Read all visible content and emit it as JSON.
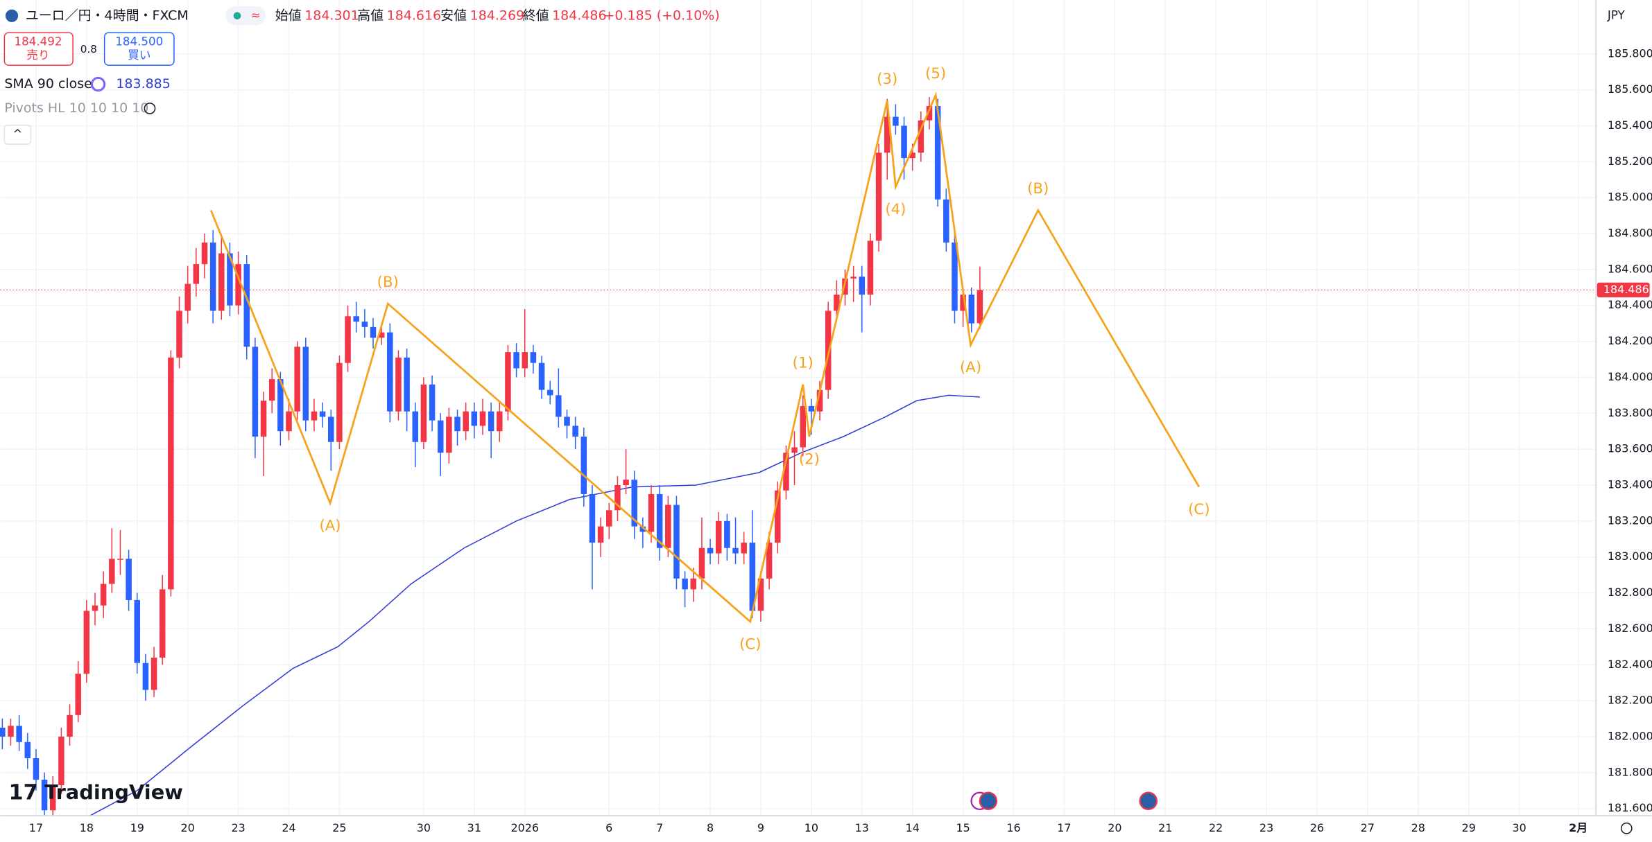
{
  "header": {
    "title": "ユーロ／円・4時間・FXCM",
    "open_label": "始値",
    "high_label": "高値",
    "low_label": "安値",
    "close_label": "終値",
    "change": "+0.185 (+0.10%)",
    "sell_price": "184.492",
    "sell_label": "売り",
    "spread": "0.8",
    "buy_price": "184.500",
    "buy_label": "買い",
    "sma_label": "SMA 90 close",
    "sma_value": "183.885",
    "pivots_label": "Pivots HL 10 10 10 10",
    "logo": "TradingView",
    "currency": "JPY"
  },
  "chart_data": {
    "type": "candlestick",
    "up_color": "#f23645",
    "down_color": "#2962ff",
    "xlim": [
      -0.25,
      189.1
    ],
    "ylim": [
      181.56,
      186.1
    ],
    "grid": true,
    "xticks": [
      {
        "value": 4,
        "label": "17"
      },
      {
        "value": 10,
        "label": "18"
      },
      {
        "value": 16,
        "label": "19"
      },
      {
        "value": 22,
        "label": "20"
      },
      {
        "value": 28,
        "label": "23"
      },
      {
        "value": 34,
        "label": "24"
      },
      {
        "value": 40,
        "label": "25"
      },
      {
        "value": 50,
        "label": "30"
      },
      {
        "value": 56,
        "label": "31"
      },
      {
        "value": 62,
        "label": "2026"
      },
      {
        "value": 72,
        "label": "6"
      },
      {
        "value": 78,
        "label": "7"
      },
      {
        "value": 84,
        "label": "8"
      },
      {
        "value": 90,
        "label": "9"
      },
      {
        "value": 96,
        "label": "10"
      },
      {
        "value": 102,
        "label": "13"
      },
      {
        "value": 108,
        "label": "14"
      },
      {
        "value": 114,
        "label": "15"
      },
      {
        "value": 120,
        "label": "16"
      },
      {
        "value": 126,
        "label": "17"
      },
      {
        "value": 132,
        "label": "20"
      },
      {
        "value": 138,
        "label": "21"
      },
      {
        "value": 144,
        "label": "22"
      },
      {
        "value": 150,
        "label": "23"
      },
      {
        "value": 156,
        "label": "26"
      },
      {
        "value": 162,
        "label": "27"
      },
      {
        "value": 168,
        "label": "28"
      },
      {
        "value": 174,
        "label": "29"
      },
      {
        "value": 180,
        "label": "30"
      },
      {
        "value": 187,
        "label": "2月"
      }
    ],
    "yticks": [
      {
        "value": 181.6,
        "label": "181.600"
      },
      {
        "value": 181.8,
        "label": "181.800"
      },
      {
        "value": 182,
        "label": "182.000"
      },
      {
        "value": 182.2,
        "label": "182.200"
      },
      {
        "value": 182.4,
        "label": "182.400"
      },
      {
        "value": 182.6,
        "label": "182.600"
      },
      {
        "value": 182.8,
        "label": "182.800"
      },
      {
        "value": 183,
        "label": "183.000"
      },
      {
        "value": 183.2,
        "label": "183.200"
      },
      {
        "value": 183.4,
        "label": "183.400"
      },
      {
        "value": 183.6,
        "label": "183.600"
      },
      {
        "value": 183.8,
        "label": "183.800"
      },
      {
        "value": 184,
        "label": "184.000"
      },
      {
        "value": 184.2,
        "label": "184.200"
      },
      {
        "value": 184.4,
        "label": "184.400"
      },
      {
        "value": 184.6,
        "label": "184.600"
      },
      {
        "value": 184.8,
        "label": "184.800"
      },
      {
        "value": 185,
        "label": "185.000"
      },
      {
        "value": 185.2,
        "label": "185.200"
      },
      {
        "value": 185.4,
        "label": "185.400"
      },
      {
        "value": 185.6,
        "label": "185.600"
      },
      {
        "value": 185.8,
        "label": "185.800"
      }
    ],
    "ohlc": [
      [
        182.05,
        182.1,
        181.93,
        182
      ],
      [
        182,
        182.1,
        181.95,
        182.06
      ],
      [
        182.06,
        182.12,
        181.92,
        181.97
      ],
      [
        181.97,
        182.02,
        181.82,
        181.88
      ],
      [
        181.88,
        181.93,
        181.7,
        181.76
      ],
      [
        181.76,
        181.8,
        181.55,
        181.59
      ],
      [
        181.59,
        181.78,
        181.55,
        181.73
      ],
      [
        181.73,
        182.05,
        181.68,
        182
      ],
      [
        182,
        182.18,
        181.95,
        182.12
      ],
      [
        182.12,
        182.42,
        182.08,
        182.35
      ],
      [
        182.35,
        182.76,
        182.3,
        182.7
      ],
      [
        182.7,
        182.8,
        182.62,
        182.73
      ],
      [
        182.73,
        182.92,
        182.66,
        182.85
      ],
      [
        182.85,
        183.16,
        182.8,
        182.99
      ],
      [
        182.99,
        183.15,
        182.9,
        182.99
      ],
      [
        182.99,
        183.04,
        182.7,
        182.76
      ],
      [
        182.76,
        182.8,
        182.35,
        182.41
      ],
      [
        182.41,
        182.46,
        182.2,
        182.26
      ],
      [
        182.26,
        182.5,
        182.22,
        182.44
      ],
      [
        182.44,
        182.9,
        182.4,
        182.82
      ],
      [
        182.82,
        184.15,
        182.78,
        184.11
      ],
      [
        184.11,
        184.45,
        184.05,
        184.37
      ],
      [
        184.37,
        184.62,
        184.3,
        184.52
      ],
      [
        184.52,
        184.72,
        184.45,
        184.63
      ],
      [
        184.63,
        184.8,
        184.55,
        184.75
      ],
      [
        184.75,
        184.82,
        184.3,
        184.37
      ],
      [
        184.37,
        184.78,
        184.32,
        184.69
      ],
      [
        184.69,
        184.75,
        184.34,
        184.4
      ],
      [
        184.4,
        184.7,
        184.35,
        184.63
      ],
      [
        184.63,
        184.68,
        184.1,
        184.17
      ],
      [
        184.17,
        184.22,
        183.55,
        183.67
      ],
      [
        183.67,
        183.92,
        183.45,
        183.87
      ],
      [
        183.87,
        184.05,
        183.8,
        183.99
      ],
      [
        183.99,
        184.03,
        183.62,
        183.7
      ],
      [
        183.7,
        183.88,
        183.65,
        183.81
      ],
      [
        183.81,
        184.2,
        183.76,
        184.17
      ],
      [
        184.17,
        184.22,
        183.7,
        183.76
      ],
      [
        183.76,
        183.88,
        183.7,
        183.81
      ],
      [
        183.81,
        183.86,
        183.72,
        183.78
      ],
      [
        183.78,
        183.82,
        183.48,
        183.64
      ],
      [
        183.64,
        184.12,
        183.6,
        184.08
      ],
      [
        184.08,
        184.4,
        184.03,
        184.34
      ],
      [
        184.34,
        184.42,
        184.25,
        184.31
      ],
      [
        184.31,
        184.38,
        184.22,
        184.28
      ],
      [
        184.28,
        184.33,
        184.16,
        184.22
      ],
      [
        184.22,
        184.3,
        184.18,
        184.25
      ],
      [
        184.25,
        184.3,
        183.75,
        183.81
      ],
      [
        183.81,
        184.15,
        183.76,
        184.11
      ],
      [
        184.11,
        184.16,
        183.7,
        183.81
      ],
      [
        183.81,
        183.86,
        183.5,
        183.64
      ],
      [
        183.64,
        184,
        183.6,
        183.96
      ],
      [
        183.96,
        184.01,
        183.7,
        183.76
      ],
      [
        183.76,
        183.8,
        183.45,
        183.58
      ],
      [
        183.58,
        183.83,
        183.52,
        183.78
      ],
      [
        183.78,
        183.82,
        183.62,
        183.7
      ],
      [
        183.7,
        183.86,
        183.65,
        183.81
      ],
      [
        183.81,
        183.86,
        183.66,
        183.73
      ],
      [
        183.73,
        183.88,
        183.68,
        183.81
      ],
      [
        183.81,
        183.86,
        183.55,
        183.7
      ],
      [
        183.7,
        183.86,
        183.64,
        183.81
      ],
      [
        183.81,
        184.18,
        183.76,
        184.14
      ],
      [
        184.14,
        184.19,
        184,
        184.05
      ],
      [
        184.05,
        184.38,
        184,
        184.14
      ],
      [
        184.14,
        184.18,
        184.02,
        184.08
      ],
      [
        184.08,
        184.12,
        183.88,
        183.93
      ],
      [
        183.93,
        183.98,
        183.85,
        183.9
      ],
      [
        183.9,
        184.05,
        183.72,
        183.78
      ],
      [
        183.78,
        183.82,
        183.66,
        183.73
      ],
      [
        183.73,
        183.78,
        183.6,
        183.67
      ],
      [
        183.67,
        183.72,
        183.28,
        183.35
      ],
      [
        183.35,
        183.4,
        182.82,
        183.08
      ],
      [
        183.08,
        183.22,
        183,
        183.17
      ],
      [
        183.17,
        183.3,
        183.1,
        183.26
      ],
      [
        183.26,
        183.45,
        183.2,
        183.4
      ],
      [
        183.4,
        183.6,
        183.35,
        183.43
      ],
      [
        183.43,
        183.48,
        183.1,
        183.17
      ],
      [
        183.17,
        183.22,
        183.05,
        183.14
      ],
      [
        183.14,
        183.4,
        183.08,
        183.35
      ],
      [
        183.35,
        183.4,
        182.98,
        183.05
      ],
      [
        183.05,
        183.34,
        183,
        183.29
      ],
      [
        183.29,
        183.34,
        182.82,
        182.88
      ],
      [
        182.88,
        182.92,
        182.72,
        182.82
      ],
      [
        182.82,
        182.94,
        182.75,
        182.88
      ],
      [
        182.88,
        183.22,
        182.82,
        183.05
      ],
      [
        183.05,
        183.1,
        182.96,
        183.02
      ],
      [
        183.02,
        183.25,
        182.96,
        183.2
      ],
      [
        183.2,
        183.24,
        182.98,
        183.05
      ],
      [
        183.05,
        183.22,
        182.96,
        183.02
      ],
      [
        183.02,
        183.14,
        182.96,
        183.08
      ],
      [
        183.08,
        183.26,
        182.66,
        182.7
      ],
      [
        182.7,
        182.92,
        182.64,
        182.88
      ],
      [
        182.88,
        183.14,
        182.82,
        183.08
      ],
      [
        183.08,
        183.42,
        183.02,
        183.37
      ],
      [
        183.37,
        183.62,
        183.32,
        183.58
      ],
      [
        183.58,
        183.7,
        183.4,
        183.61
      ],
      [
        183.61,
        183.9,
        183.56,
        183.84
      ],
      [
        183.84,
        183.88,
        183.68,
        183.81
      ],
      [
        183.81,
        183.98,
        183.76,
        183.93
      ],
      [
        183.93,
        184.42,
        183.88,
        184.37
      ],
      [
        184.37,
        184.54,
        184.32,
        184.46
      ],
      [
        184.46,
        184.6,
        184.4,
        184.55
      ],
      [
        184.55,
        184.62,
        184.42,
        184.56
      ],
      [
        184.56,
        184.62,
        184.25,
        184.46
      ],
      [
        184.46,
        184.8,
        184.4,
        184.76
      ],
      [
        184.76,
        185.3,
        184.7,
        185.25
      ],
      [
        185.25,
        185.55,
        185.1,
        185.45
      ],
      [
        185.45,
        185.52,
        185.35,
        185.4
      ],
      [
        185.4,
        185.45,
        185.1,
        185.22
      ],
      [
        185.22,
        185.3,
        185.15,
        185.25
      ],
      [
        185.25,
        185.48,
        185.2,
        185.43
      ],
      [
        185.43,
        185.56,
        185.38,
        185.51
      ],
      [
        185.51,
        185.55,
        184.95,
        184.99
      ],
      [
        184.99,
        185.05,
        184.7,
        184.75
      ],
      [
        184.75,
        184.8,
        184.3,
        184.37
      ],
      [
        184.37,
        184.5,
        184.28,
        184.46
      ],
      [
        184.46,
        184.5,
        184.25,
        184.3
      ],
      [
        184.301,
        184.616,
        184.269,
        184.486
      ]
    ],
    "sma": {
      "color": "#2f3bd6",
      "x": [
        10.4,
        16,
        22.3,
        28.5,
        34.5,
        39.8,
        43.5,
        48.5,
        54.8,
        61,
        67.3,
        74.8,
        82.3,
        89.8,
        94.8,
        99.8,
        104.8,
        108.5,
        112.3,
        116
      ],
      "values": [
        181.56,
        181.7,
        181.94,
        182.17,
        182.38,
        182.5,
        182.64,
        182.85,
        183.05,
        183.2,
        183.32,
        183.39,
        183.4,
        183.47,
        183.58,
        183.67,
        183.78,
        183.87,
        183.9,
        183.89
      ]
    },
    "wave": {
      "color": "#f7a21b",
      "x": [
        24.75,
        38.9,
        45.75,
        88.75,
        95,
        95.75,
        105,
        106,
        110.75,
        114.9,
        122.9,
        142
      ],
      "values": [
        184.93,
        183.3,
        184.41,
        182.64,
        183.96,
        183.67,
        185.54,
        185.06,
        185.57,
        184.18,
        184.93,
        183.39
      ],
      "labels": [
        null,
        "(A)",
        "(B)",
        "(C)",
        "(1)",
        "(2)",
        "(3)",
        "(4)",
        "(5)",
        "(A)",
        "(B)",
        "(C)"
      ]
    }
  }
}
